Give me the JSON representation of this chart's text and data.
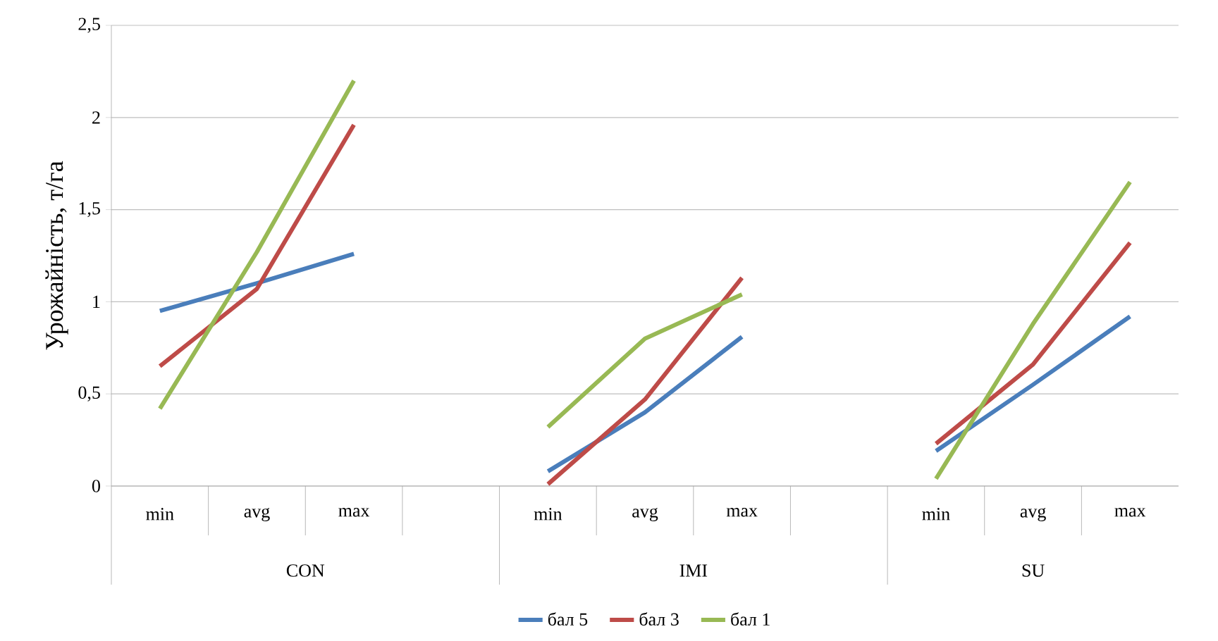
{
  "chart_data": {
    "type": "line",
    "ylabel": "Урожайність, т/га",
    "categories": [
      "min",
      "avg",
      "max",
      null,
      "min",
      "avg",
      "max",
      null,
      "min",
      "avg",
      "max"
    ],
    "series": [
      {
        "name": "бал 5",
        "color": "#4a7ebb",
        "values": [
          0.95,
          1.1,
          1.26,
          null,
          0.08,
          0.4,
          0.81,
          null,
          0.19,
          0.55,
          0.92
        ]
      },
      {
        "name": "бал 3",
        "color": "#be4b48",
        "values": [
          0.65,
          1.07,
          1.96,
          null,
          0.01,
          0.47,
          1.13,
          null,
          0.23,
          0.66,
          1.32
        ]
      },
      {
        "name": "бал 1",
        "color": "#98b954",
        "values": [
          0.42,
          1.27,
          2.2,
          null,
          0.32,
          0.8,
          1.04,
          null,
          0.04,
          0.88,
          1.65
        ]
      }
    ],
    "ylim": [
      0,
      2.5
    ],
    "yticks": [
      0,
      {
        "value": 0.5,
        "label": "0,5"
      },
      1,
      {
        "value": 1.5,
        "label": "1,5"
      },
      2,
      {
        "value": 2.5,
        "label": "2,5"
      }
    ],
    "grid": "y",
    "legend": "bottom",
    "annotations": [
      "CON",
      "IMI",
      "SU"
    ]
  }
}
